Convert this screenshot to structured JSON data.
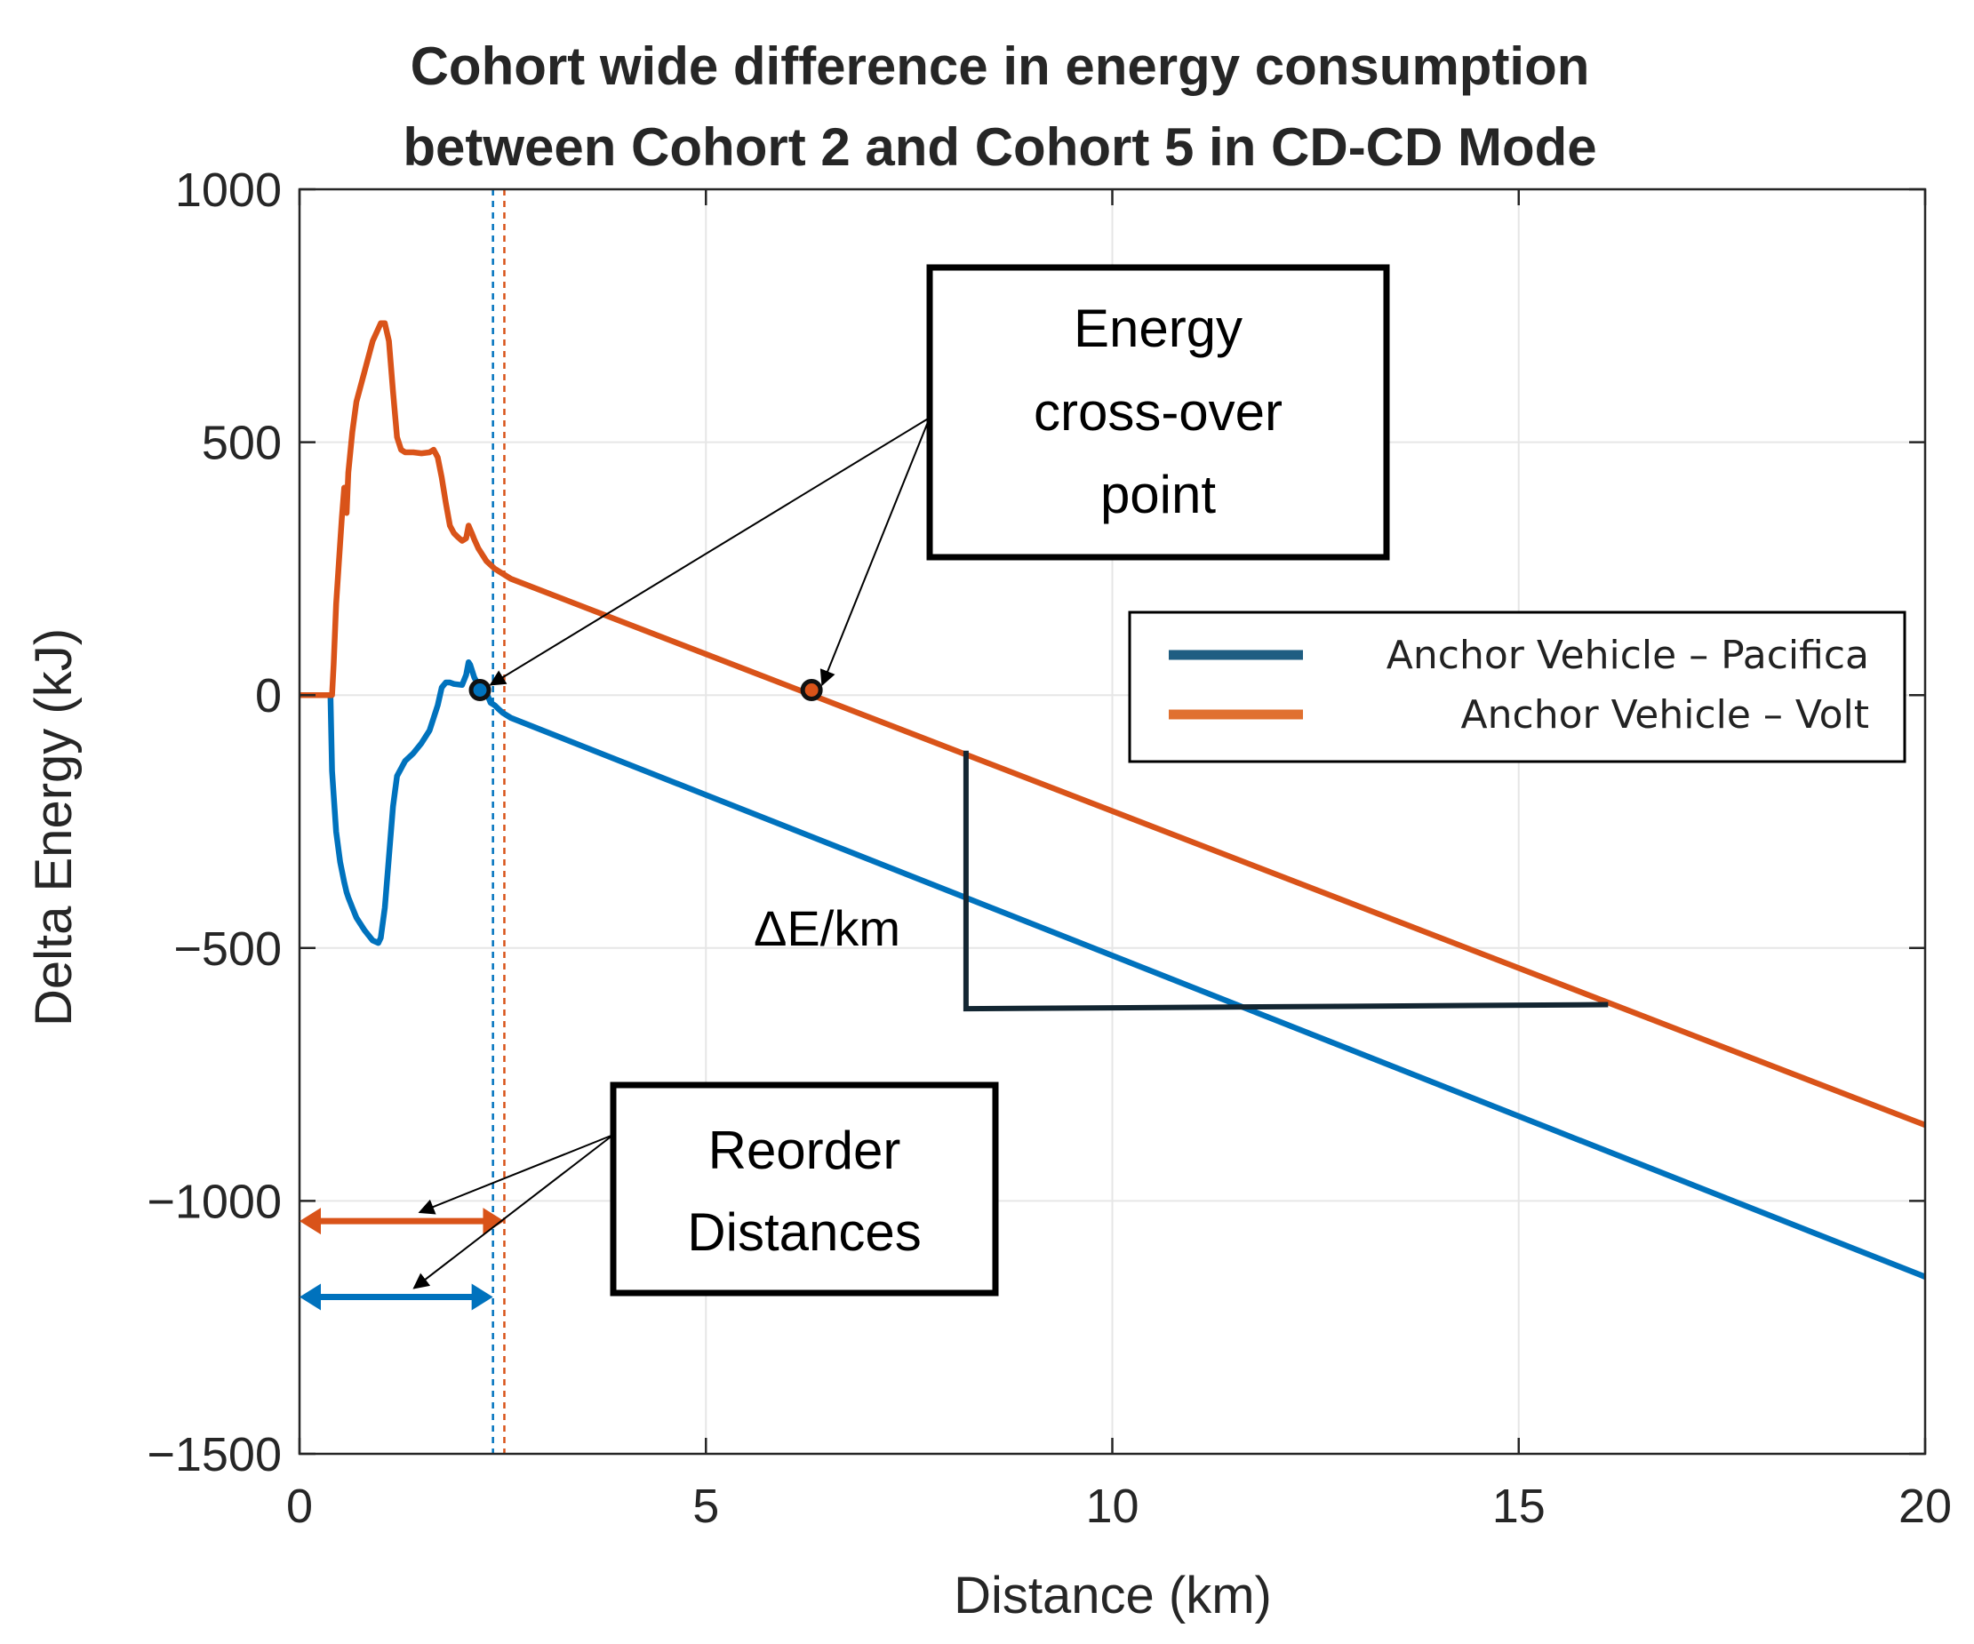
{
  "chart_data": {
    "type": "line",
    "title_lines": [
      "Cohort wide difference in energy consumption",
      "between Cohort 2 and Cohort 5 in CD-CD Mode"
    ],
    "xlabel": "Distance (km)",
    "ylabel": "Delta Energy (kJ)",
    "xlim": [
      0,
      20
    ],
    "ylim": [
      -1500,
      1000
    ],
    "xticks": [
      0,
      5,
      10,
      15,
      20
    ],
    "xtick_labels": [
      "0",
      "5",
      "10",
      "15",
      "20"
    ],
    "yticks": [
      -1500,
      -1000,
      -500,
      0,
      500,
      1000
    ],
    "ytick_labels": [
      "−1500",
      "−1000",
      "−500",
      "0",
      "500",
      "1000"
    ],
    "grid": true,
    "legend": {
      "position": "right",
      "entries": [
        "Anchor Vehicle – Pacifica",
        "Anchor Vehicle – Volt"
      ]
    },
    "series": [
      {
        "name": "Anchor Vehicle – Pacifica",
        "color": "#0072BD",
        "legend_color": "#1F5E82",
        "x": [
          0,
          0.38,
          0.4,
          0.45,
          0.5,
          0.55,
          0.58,
          0.6,
          0.65,
          0.7,
          0.8,
          0.9,
          0.97,
          1.0,
          1.05,
          1.1,
          1.15,
          1.2,
          1.3,
          1.4,
          1.5,
          1.6,
          1.7,
          1.75,
          1.8,
          1.85,
          1.9,
          2.0,
          2.05,
          2.08,
          2.1,
          2.15,
          2.2,
          2.25,
          2.3,
          2.35,
          2.4,
          2.45,
          2.5,
          2.6,
          20
        ],
        "y": [
          0,
          0,
          -150,
          -270,
          -330,
          -370,
          -390,
          -400,
          -420,
          -440,
          -465,
          -485,
          -490,
          -480,
          -420,
          -320,
          -220,
          -160,
          -130,
          -115,
          -95,
          -70,
          -20,
          15,
          25,
          25,
          22,
          20,
          40,
          65,
          60,
          35,
          20,
          10,
          5,
          -15,
          -20,
          -28,
          -35,
          -45,
          -1150
        ]
      },
      {
        "name": "Anchor Vehicle – Volt",
        "color": "#D95319",
        "legend_color": "#E07030",
        "x": [
          0,
          0.4,
          0.42,
          0.45,
          0.5,
          0.52,
          0.55,
          0.58,
          0.6,
          0.65,
          0.7,
          0.8,
          0.9,
          1.0,
          1.05,
          1.1,
          1.15,
          1.2,
          1.25,
          1.3,
          1.4,
          1.5,
          1.6,
          1.65,
          1.7,
          1.75,
          1.8,
          1.85,
          1.9,
          1.95,
          2.0,
          2.05,
          2.08,
          2.12,
          2.15,
          2.2,
          2.3,
          2.4,
          2.5,
          2.6,
          20
        ],
        "y": [
          0,
          0,
          60,
          180,
          300,
          350,
          410,
          360,
          440,
          520,
          580,
          640,
          700,
          735,
          735,
          700,
          600,
          510,
          485,
          480,
          480,
          478,
          480,
          485,
          470,
          430,
          380,
          335,
          320,
          312,
          305,
          310,
          335,
          320,
          308,
          290,
          265,
          250,
          240,
          230,
          -850
        ]
      }
    ],
    "annotations": {
      "crossover_box_lines": [
        "Energy",
        "cross-over",
        "point"
      ],
      "crossover_points": [
        {
          "x": 2.22,
          "y": 10
        },
        {
          "x": 6.3,
          "y": 10
        }
      ],
      "reorder_box_lines": [
        "Reorder",
        "Distances"
      ],
      "reorder_lines": [
        {
          "x": 2.38,
          "color": "#0072BD"
        },
        {
          "x": 2.52,
          "color": "#D95319"
        }
      ],
      "reorder_arrows": [
        {
          "x0": 0,
          "x1": 2.52,
          "y": -1040,
          "color": "#D95319"
        },
        {
          "x0": 0,
          "x1": 2.38,
          "y": -1190,
          "color": "#0072BD"
        }
      ],
      "slope_label": "ΔE/km",
      "slope_triangle": {
        "x_top": 8.2,
        "y_top": -110,
        "y_bottom": -620,
        "x_right": 16.1,
        "y_right": -612
      }
    }
  }
}
